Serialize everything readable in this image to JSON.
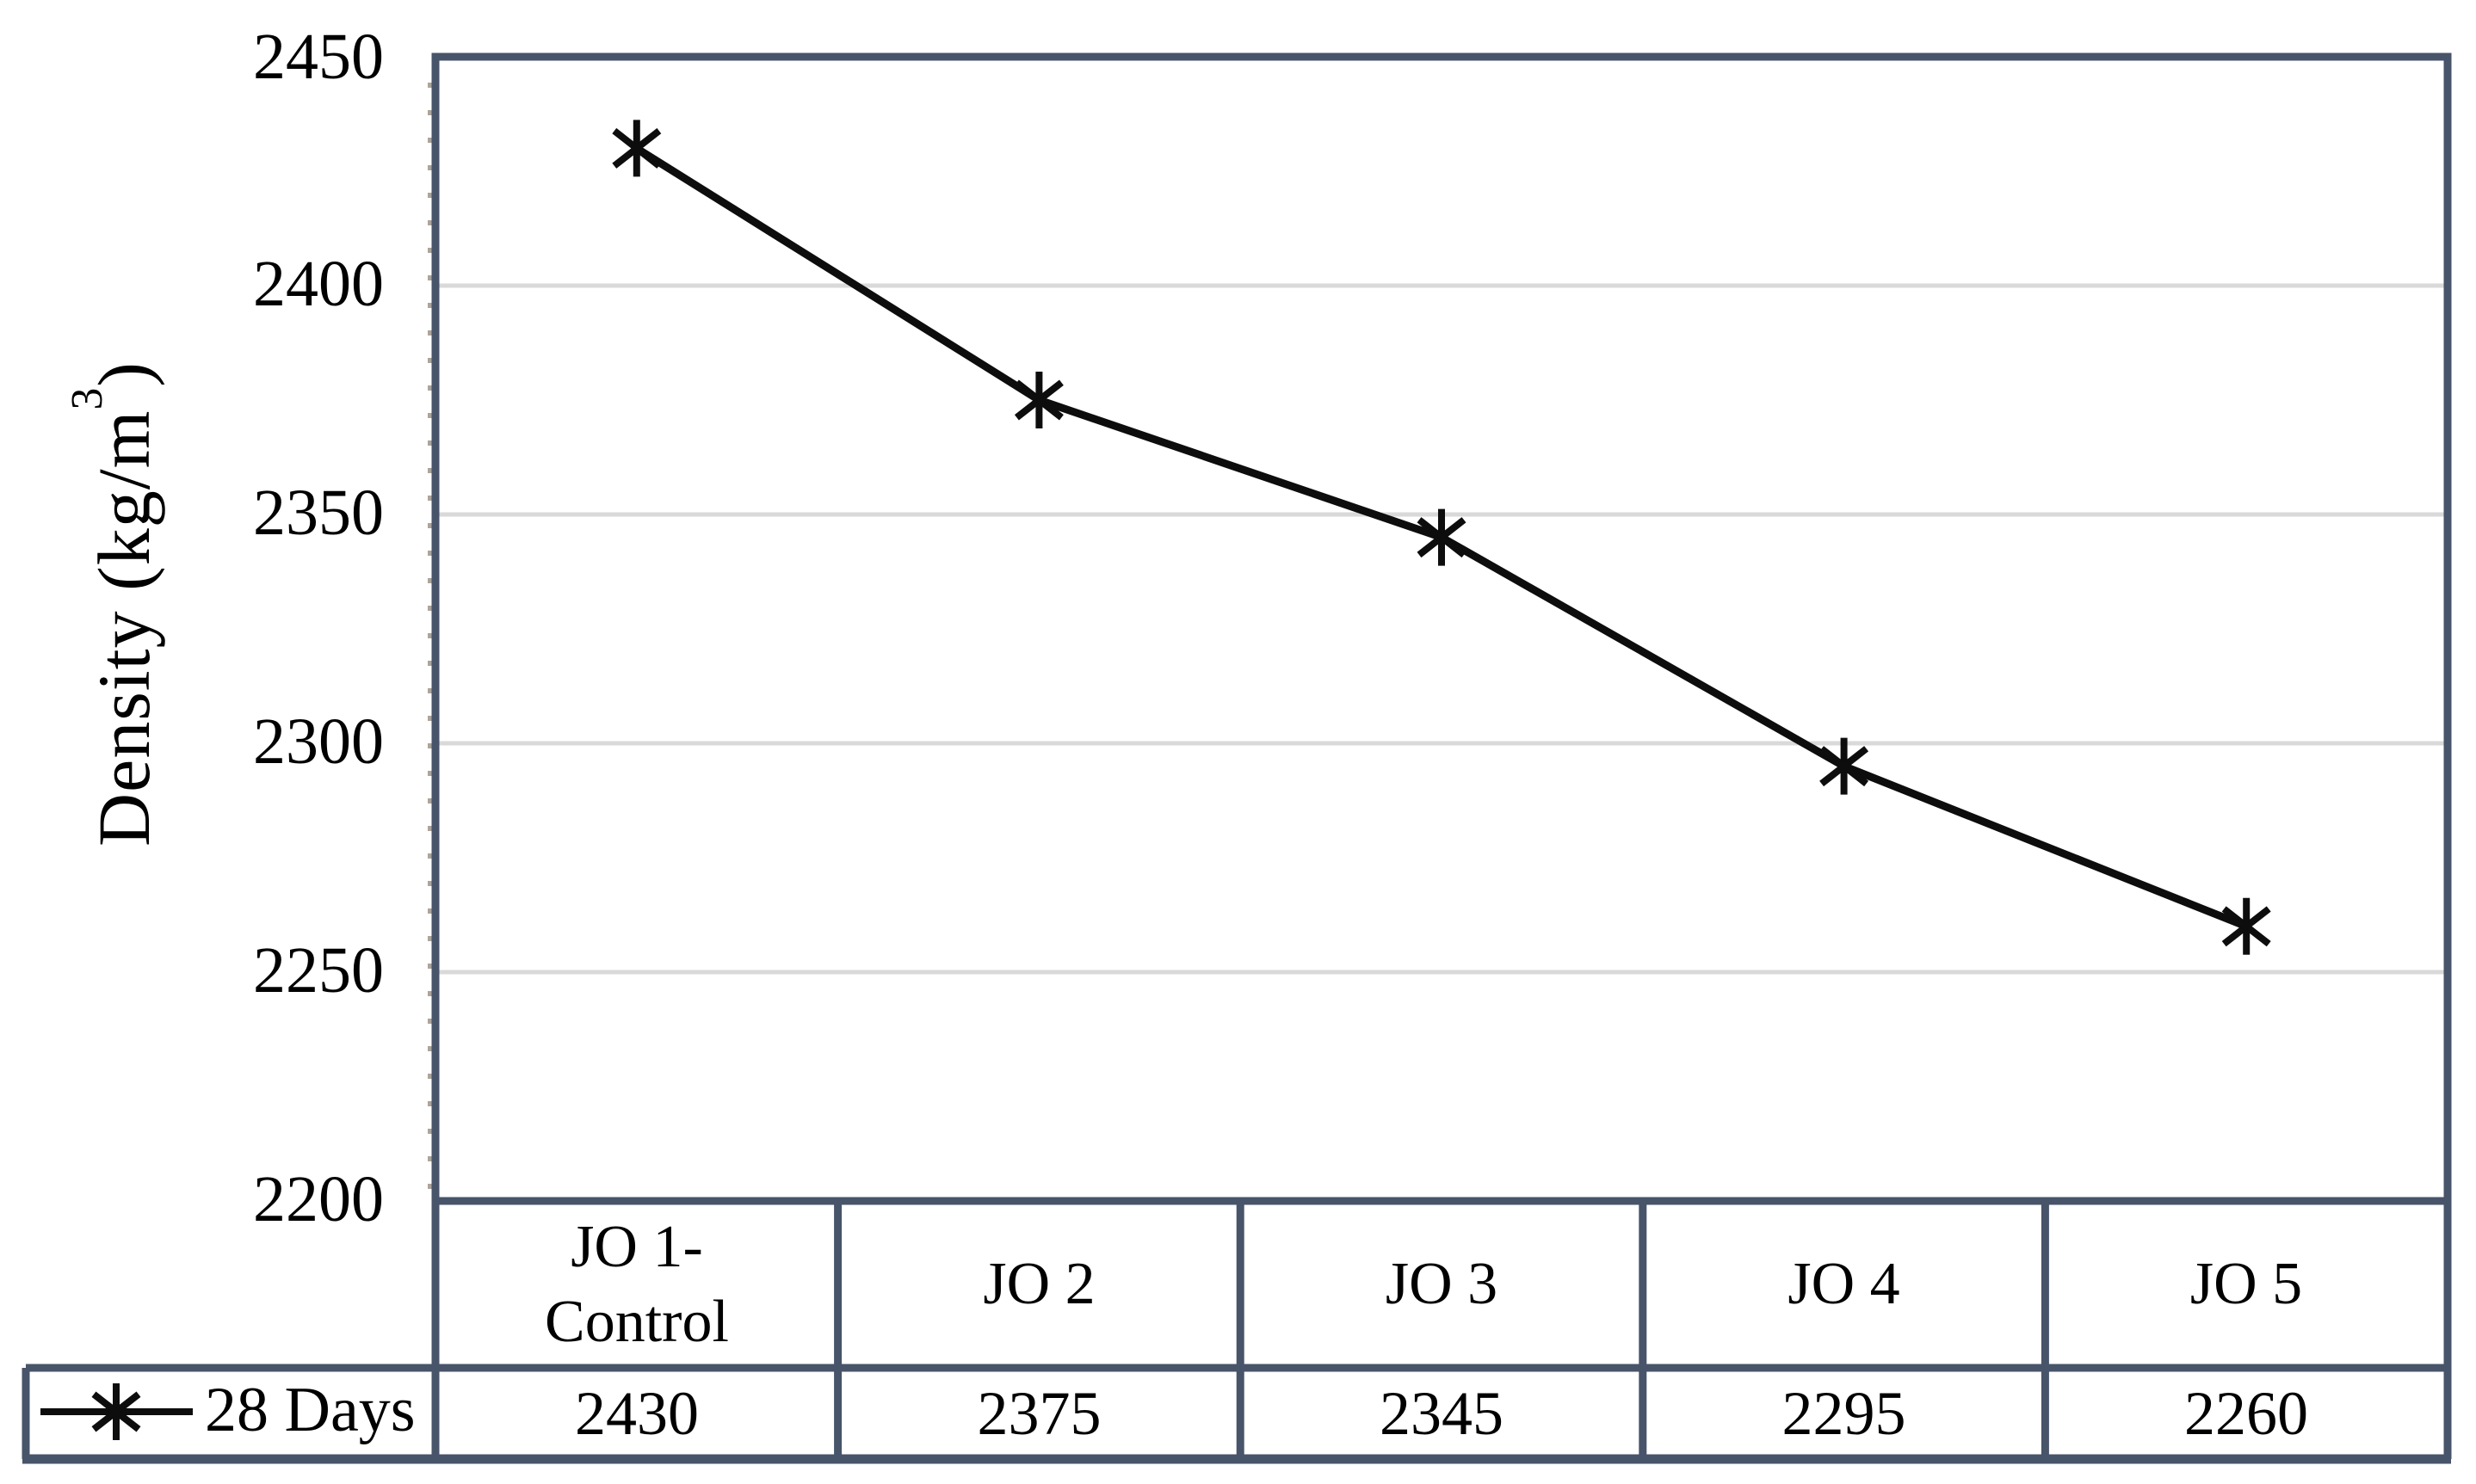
{
  "chart_data": {
    "type": "line",
    "title": "",
    "xlabel": "",
    "ylabel": "Density (kg/m³)",
    "ylabel_parts": {
      "base": "Density (kg/m",
      "sup": "3",
      "close": ")"
    },
    "categories": [
      "JO 1-\nControl",
      "JO 2",
      "JO 3",
      "JO 4",
      "JO 5"
    ],
    "series": [
      {
        "name": "28 Days",
        "values": [
          2430,
          2375,
          2345,
          2295,
          2260
        ],
        "marker": "asterisk",
        "color": "#0d0d0d"
      }
    ],
    "yticks": [
      "2450",
      "2400",
      "2350",
      "2300",
      "2250",
      "2200"
    ],
    "ylim": [
      2200,
      2450
    ],
    "grid": "horizontal-major",
    "legend_position": "bottom-left-table-cell",
    "data_table_shown": true,
    "colors": {
      "axis_border": "#475469",
      "gridline": "#d9d9d9",
      "line": "#0d0d0d",
      "text": "#000000",
      "background": "#ffffff"
    }
  }
}
